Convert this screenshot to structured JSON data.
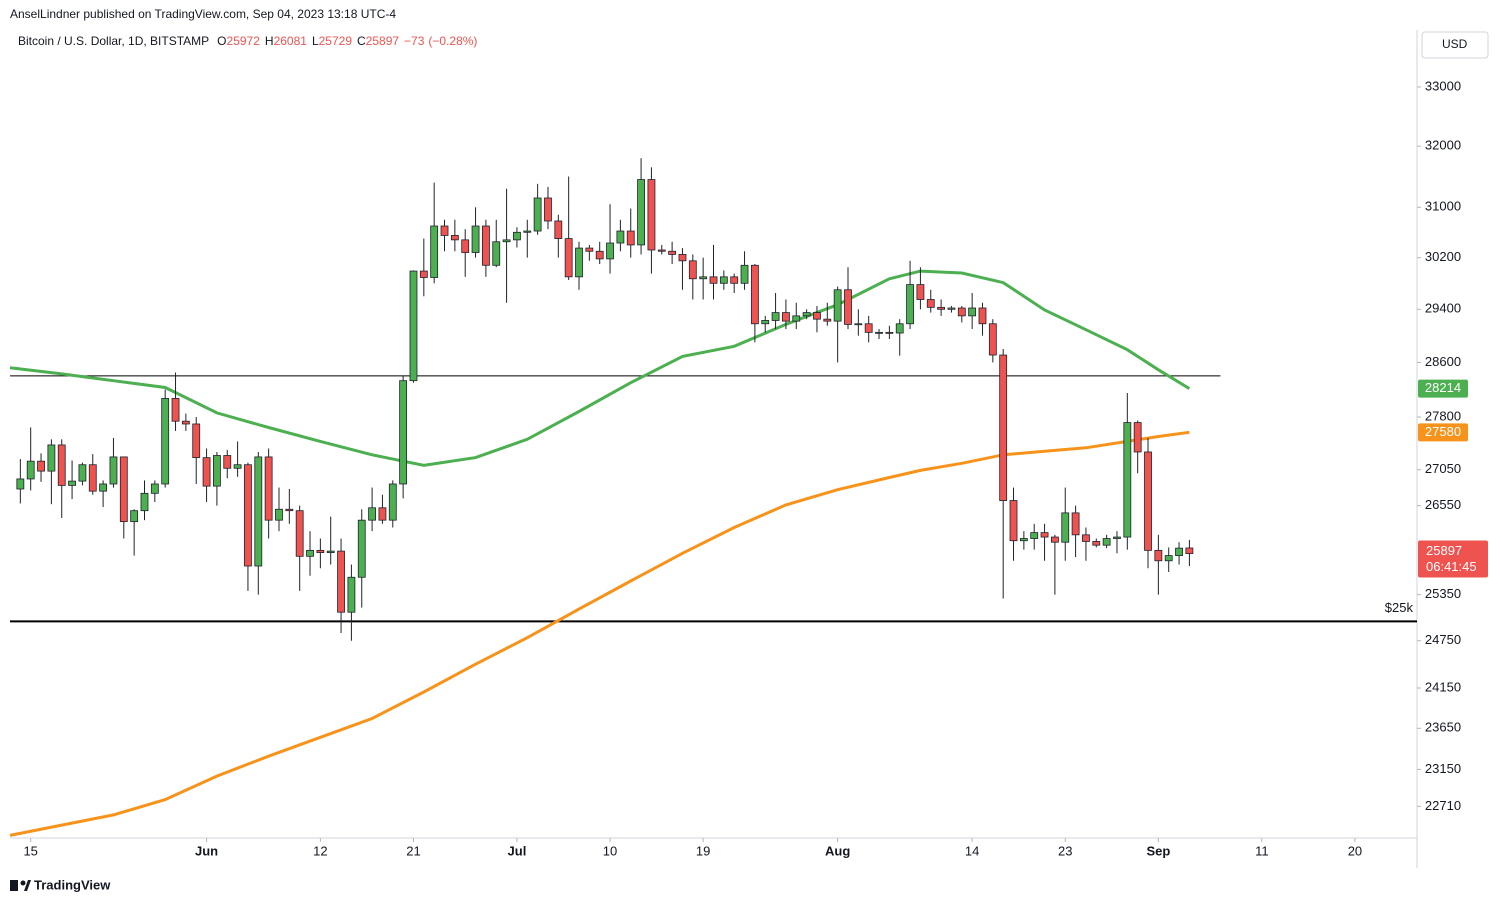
{
  "header": {
    "publisher": "AnselLindner published on TradingView.com, Sep 04, 2023 13:18 UTC-4",
    "footer": "TradingView",
    "currency": "USD"
  },
  "chart_data": {
    "type": "candlestick",
    "title": "Bitcoin / U.S. Dollar, 1D, BITSTAMP",
    "legend_letters": [
      "O",
      "H",
      "L",
      "C"
    ],
    "change": {
      "value": -73,
      "label": "−73"
    },
    "change_pct": {
      "value": -0.28,
      "label": "(−0.28%)"
    },
    "countdown": "06:41:45",
    "up_color": "#4caf50",
    "down_color": "#ef5350",
    "yscale": "log",
    "ylim": [
      22340,
      33430
    ],
    "yticks": [
      33000,
      32000,
      31000,
      30200,
      29400,
      28600,
      27800,
      27050,
      26550,
      25350,
      24750,
      24150,
      23650,
      23150,
      22710
    ],
    "xlim": [
      "May 13",
      "Sep 26"
    ],
    "xticks": [
      {
        "value": "May 15",
        "label": "15"
      },
      {
        "value": "Jun 1",
        "label": "Jun"
      },
      {
        "value": "Jun 12",
        "label": "12"
      },
      {
        "value": "Jun 21",
        "label": "21"
      },
      {
        "value": "Jul 1",
        "label": "Jul"
      },
      {
        "value": "Jul 10",
        "label": "10"
      },
      {
        "value": "Jul 19",
        "label": "19"
      },
      {
        "value": "Aug 1",
        "label": "Aug"
      },
      {
        "value": "Aug 14",
        "label": "14"
      },
      {
        "value": "Aug 23",
        "label": "23"
      },
      {
        "value": "Sep 1",
        "label": "Sep"
      },
      {
        "value": "Sep 11",
        "label": "11"
      },
      {
        "value": "Sep 20",
        "label": "20"
      }
    ],
    "x": [
      "May 14",
      "May 15",
      "May 16",
      "May 17",
      "May 18",
      "May 19",
      "May 20",
      "May 21",
      "May 22",
      "May 23",
      "May 24",
      "May 25",
      "May 26",
      "May 27",
      "May 28",
      "May 29",
      "May 30",
      "May 31",
      "Jun 1",
      "Jun 2",
      "Jun 3",
      "Jun 4",
      "Jun 5",
      "Jun 6",
      "Jun 7",
      "Jun 8",
      "Jun 9",
      "Jun 10",
      "Jun 11",
      "Jun 12",
      "Jun 13",
      "Jun 14",
      "Jun 15",
      "Jun 16",
      "Jun 17",
      "Jun 18",
      "Jun 19",
      "Jun 20",
      "Jun 21",
      "Jun 22",
      "Jun 23",
      "Jun 24",
      "Jun 25",
      "Jun 26",
      "Jun 27",
      "Jun 28",
      "Jun 29",
      "Jun 30",
      "Jul 1",
      "Jul 2",
      "Jul 3",
      "Jul 4",
      "Jul 5",
      "Jul 6",
      "Jul 7",
      "Jul 8",
      "Jul 9",
      "Jul 10",
      "Jul 11",
      "Jul 12",
      "Jul 13",
      "Jul 14",
      "Jul 15",
      "Jul 16",
      "Jul 17",
      "Jul 18",
      "Jul 19",
      "Jul 20",
      "Jul 21",
      "Jul 22",
      "Jul 23",
      "Jul 24",
      "Jul 25",
      "Jul 26",
      "Jul 27",
      "Jul 28",
      "Jul 29",
      "Jul 30",
      "Jul 31",
      "Aug 1",
      "Aug 2",
      "Aug 3",
      "Aug 4",
      "Aug 5",
      "Aug 6",
      "Aug 7",
      "Aug 8",
      "Aug 9",
      "Aug 10",
      "Aug 11",
      "Aug 12",
      "Aug 13",
      "Aug 14",
      "Aug 15",
      "Aug 16",
      "Aug 17",
      "Aug 18",
      "Aug 19",
      "Aug 20",
      "Aug 21",
      "Aug 22",
      "Aug 23",
      "Aug 24",
      "Aug 25",
      "Aug 26",
      "Aug 27",
      "Aug 28",
      "Aug 29",
      "Aug 30",
      "Aug 31",
      "Sep 1",
      "Sep 2",
      "Sep 3",
      "Sep 4"
    ],
    "open": [
      26780,
      26920,
      27170,
      27030,
      27400,
      26830,
      26890,
      27120,
      26750,
      26850,
      27230,
      26330,
      26480,
      26720,
      26850,
      28070,
      27740,
      27700,
      27220,
      26820,
      27250,
      27070,
      27120,
      25730,
      27230,
      26350,
      26500,
      26480,
      25860,
      25940,
      25910,
      25930,
      25120,
      25580,
      26350,
      26520,
      26350,
      26850,
      28330,
      29990,
      29890,
      30700,
      30550,
      30480,
      30280,
      30700,
      30080,
      30450,
      30480,
      30600,
      30620,
      31150,
      30780,
      30500,
      29900,
      30350,
      30300,
      30180,
      30430,
      30620,
      30400,
      31450,
      30320,
      30300,
      30250,
      30150,
      29870,
      29900,
      29800,
      29900,
      29800,
      30080,
      29180,
      29230,
      29350,
      29220,
      29300,
      29350,
      29250,
      29220,
      29700,
      29170,
      29180,
      29050,
      29050,
      29040,
      29180,
      29780,
      29550,
      29430,
      29400,
      29420,
      29300,
      29420,
      29180,
      28710,
      26620,
      26070,
      26100,
      26180,
      26120,
      26050,
      26450,
      26150,
      26060,
      26010,
      26100,
      26120,
      27720,
      27300,
      25940,
      25800,
      25870,
      25972
    ],
    "high": [
      27200,
      27650,
      27280,
      27480,
      27480,
      27180,
      27150,
      27270,
      26900,
      27500,
      27230,
      26500,
      26900,
      26900,
      28200,
      28450,
      27850,
      27800,
      27350,
      27300,
      27330,
      27450,
      27150,
      27300,
      27350,
      26800,
      26780,
      26550,
      26200,
      26100,
      26400,
      26100,
      25750,
      26500,
      26800,
      26700,
      26900,
      28400,
      30000,
      30500,
      31400,
      30800,
      30800,
      30650,
      31000,
      30800,
      30800,
      31300,
      30680,
      30800,
      31380,
      31330,
      30880,
      31500,
      30450,
      30400,
      30450,
      31050,
      30800,
      30980,
      31800,
      31650,
      30400,
      30450,
      30350,
      30250,
      30200,
      30400,
      30000,
      29950,
      30300,
      30100,
      29300,
      29650,
      29550,
      29500,
      29400,
      29450,
      29500,
      29750,
      30050,
      29400,
      29300,
      29100,
      29150,
      29250,
      30150,
      30050,
      29700,
      29550,
      29450,
      29450,
      29650,
      29500,
      29250,
      28800,
      26800,
      26200,
      26300,
      26300,
      26150,
      26800,
      26550,
      26250,
      26100,
      26150,
      26200,
      28150,
      27750,
      27500,
      26150,
      25980,
      26050,
      26081
    ],
    "low": [
      26580,
      26760,
      26880,
      26570,
      26380,
      26640,
      26830,
      26700,
      26530,
      26800,
      26100,
      25870,
      26350,
      26600,
      26800,
      27600,
      27600,
      26850,
      26600,
      26550,
      26930,
      26950,
      25400,
      25350,
      26100,
      26200,
      26300,
      25400,
      25600,
      25700,
      25750,
      24850,
      24750,
      25180,
      26200,
      26300,
      26250,
      26650,
      28300,
      29600,
      29800,
      30300,
      30300,
      29900,
      30200,
      29900,
      30050,
      29500,
      30360,
      30200,
      30560,
      30650,
      30200,
      29850,
      29700,
      30150,
      30100,
      29950,
      30300,
      30200,
      30250,
      29950,
      30250,
      30100,
      29700,
      29550,
      29550,
      29550,
      29700,
      29650,
      29700,
      28900,
      29050,
      29100,
      29100,
      29100,
      29250,
      29050,
      29150,
      28600,
      29100,
      29000,
      28900,
      28950,
      28950,
      28700,
      29100,
      29400,
      29350,
      29300,
      29350,
      29200,
      29100,
      29000,
      28600,
      25300,
      25800,
      25950,
      25950,
      25800,
      25350,
      25800,
      25850,
      25800,
      25980,
      25970,
      25900,
      25950,
      27000,
      25700,
      25350,
      25650,
      25750,
      25729
    ],
    "close": [
      26920,
      27170,
      27030,
      27400,
      26830,
      26890,
      27120,
      26750,
      26850,
      27230,
      26330,
      26480,
      26720,
      26850,
      28070,
      27740,
      27700,
      27220,
      26820,
      27250,
      27070,
      27120,
      25730,
      27230,
      26350,
      26500,
      26480,
      25860,
      25940,
      25910,
      25930,
      25120,
      25580,
      26350,
      26520,
      26350,
      26850,
      28330,
      29990,
      29890,
      30700,
      30550,
      30480,
      30280,
      30700,
      30080,
      30450,
      30480,
      30600,
      30620,
      31150,
      30780,
      30500,
      29900,
      30350,
      30300,
      30180,
      30430,
      30620,
      30400,
      31450,
      30320,
      30300,
      30250,
      30150,
      29870,
      29900,
      29800,
      29900,
      29800,
      30080,
      29180,
      29230,
      29350,
      29220,
      29300,
      29350,
      29250,
      29220,
      29700,
      29170,
      29180,
      29050,
      29050,
      29040,
      29180,
      29780,
      29550,
      29430,
      29400,
      29420,
      29300,
      29420,
      29180,
      28710,
      26620,
      26070,
      26100,
      26180,
      26120,
      26050,
      26450,
      26150,
      26060,
      26010,
      26100,
      26120,
      27720,
      27300,
      25940,
      25800,
      25870,
      25970,
      25897
    ],
    "lines": [
      {
        "color": "#4caf50",
        "x": [
          "May 13",
          "May 18",
          "May 23",
          "May 28",
          "Jun 2",
          "Jun 7",
          "Jun 12",
          "Jun 17",
          "Jun 22",
          "Jun 27",
          "Jul 2",
          "Jul 7",
          "Jul 12",
          "Jul 17",
          "Jul 22",
          "Jul 27",
          "Aug 1",
          "Aug 6",
          "Aug 9",
          "Aug 13",
          "Aug 17",
          "Aug 21",
          "Aug 25",
          "Aug 29",
          "Sep 1",
          "Sep 4"
        ],
        "values": [
          28520,
          28430,
          28330,
          28230,
          27860,
          27650,
          27450,
          27260,
          27110,
          27220,
          27480,
          27880,
          28300,
          28690,
          28840,
          29170,
          29470,
          29870,
          29990,
          29960,
          29810,
          29390,
          29090,
          28790,
          28490,
          28214
        ]
      },
      {
        "color": "#f7931a",
        "x": [
          "May 13",
          "May 18",
          "May 23",
          "May 28",
          "Jun 2",
          "Jun 7",
          "Jun 12",
          "Jun 17",
          "Jun 22",
          "Jun 27",
          "Jul 2",
          "Jul 7",
          "Jul 12",
          "Jul 17",
          "Jul 22",
          "Jul 27",
          "Aug 1",
          "Aug 6",
          "Aug 9",
          "Aug 13",
          "Aug 17",
          "Aug 21",
          "Aug 25",
          "Aug 29",
          "Sep 1",
          "Sep 4"
        ],
        "values": [
          22370,
          22490,
          22610,
          22790,
          23070,
          23310,
          23540,
          23770,
          24100,
          24450,
          24790,
          25160,
          25530,
          25900,
          26250,
          26560,
          26770,
          26940,
          27040,
          27140,
          27260,
          27310,
          27360,
          27450,
          27520,
          27580
        ]
      }
    ],
    "hlines": [
      {
        "value": 28400,
        "color": "#000000",
        "width": 1,
        "end": "Sep 7"
      },
      {
        "value": 25000,
        "color": "#000000",
        "width": 2,
        "label": "$25k"
      }
    ]
  }
}
